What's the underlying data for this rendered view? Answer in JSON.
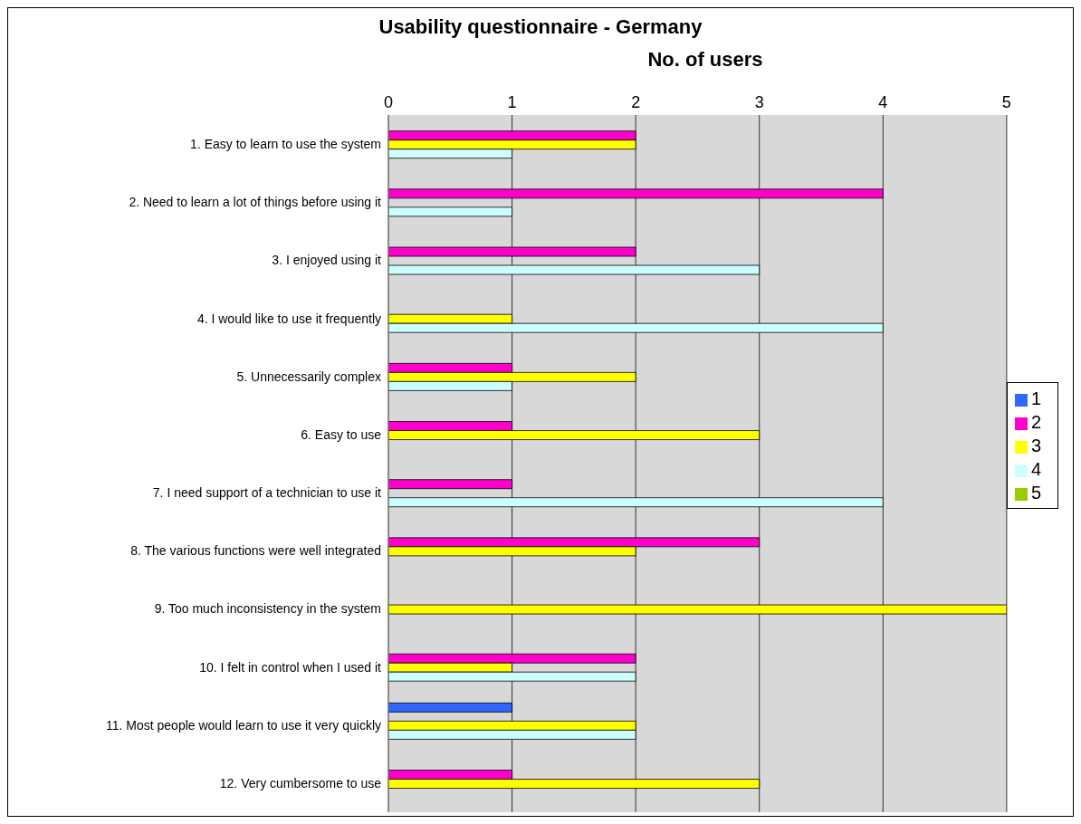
{
  "chart_data": {
    "type": "bar",
    "orientation": "horizontal",
    "title": "Usability questionnaire - Germany",
    "xlabel": "No. of users",
    "categories": [
      "1. Easy to learn to use the system",
      "2. Need to learn a lot of things before using it",
      "3. I enjoyed using it",
      "4. I would like to use it frequently",
      "5. Unnecessarily complex",
      "6. Easy to use",
      "7. I need support of a technician to use it",
      "8. The various functions were well integrated",
      "9. Too much inconsistency in the system",
      "10. I  felt  in control when I used it",
      "11. Most people would learn to use it very quickly",
      "12. Very cumbersome to use"
    ],
    "series": [
      {
        "name": "1",
        "color": "#3366ff",
        "values": [
          null,
          null,
          null,
          null,
          null,
          null,
          null,
          null,
          null,
          null,
          1,
          null
        ]
      },
      {
        "name": "2",
        "color": "#ff00cc",
        "values": [
          2,
          4,
          2,
          null,
          1,
          1,
          1,
          3,
          null,
          2,
          null,
          1
        ]
      },
      {
        "name": "3",
        "color": "#ffff00",
        "values": [
          2,
          null,
          null,
          1,
          2,
          3,
          null,
          2,
          5,
          1,
          2,
          3
        ]
      },
      {
        "name": "4",
        "color": "#ccffff",
        "values": [
          1,
          1,
          3,
          4,
          1,
          null,
          4,
          null,
          null,
          2,
          2,
          null
        ]
      },
      {
        "name": "5",
        "color": "#99cc00",
        "values": [
          null,
          null,
          null,
          null,
          null,
          null,
          null,
          null,
          null,
          null,
          null,
          null
        ]
      }
    ],
    "xlim": [
      0,
      5
    ],
    "xticks": [
      0,
      1,
      2,
      3,
      4,
      5
    ],
    "grid": "x",
    "legend": "right"
  }
}
